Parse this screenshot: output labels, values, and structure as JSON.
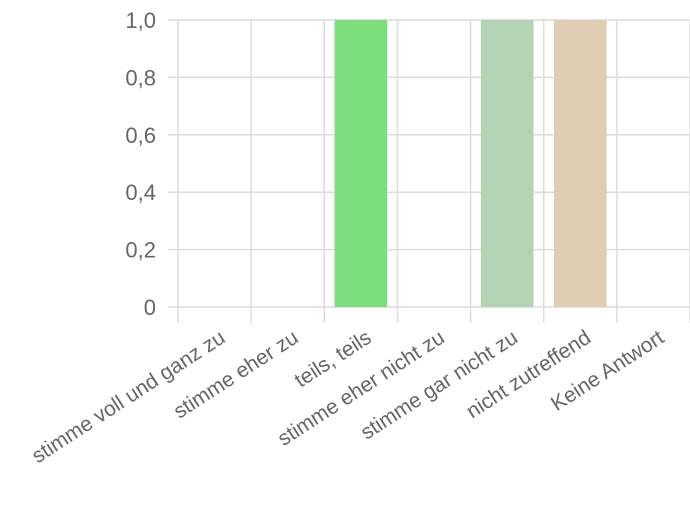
{
  "chart_data": {
    "type": "bar",
    "title": "",
    "xlabel": "",
    "ylabel": "",
    "categories": [
      "stimme voll und ganz zu",
      "stimme eher zu",
      "teils, teils",
      "stimme eher nicht zu",
      "stimme gar nicht zu",
      "nicht zutreffend",
      "Keine Antwort"
    ],
    "values": [
      0,
      0,
      1,
      0,
      1,
      1,
      0
    ],
    "bar_colors": [
      "#7be07b",
      "#7be07b",
      "#7be07b",
      "#b4d2b4",
      "#b4d2b4",
      "#e0cdb4",
      "#e0cdb4"
    ],
    "ylim": [
      0,
      1
    ],
    "yticks": [
      0,
      0.2,
      0.4,
      0.6,
      0.8,
      1.0
    ],
    "ytick_labels": [
      "0",
      "0,2",
      "0,4",
      "0,6",
      "0,8",
      "1,0"
    ],
    "grid": true,
    "legend": "none"
  }
}
